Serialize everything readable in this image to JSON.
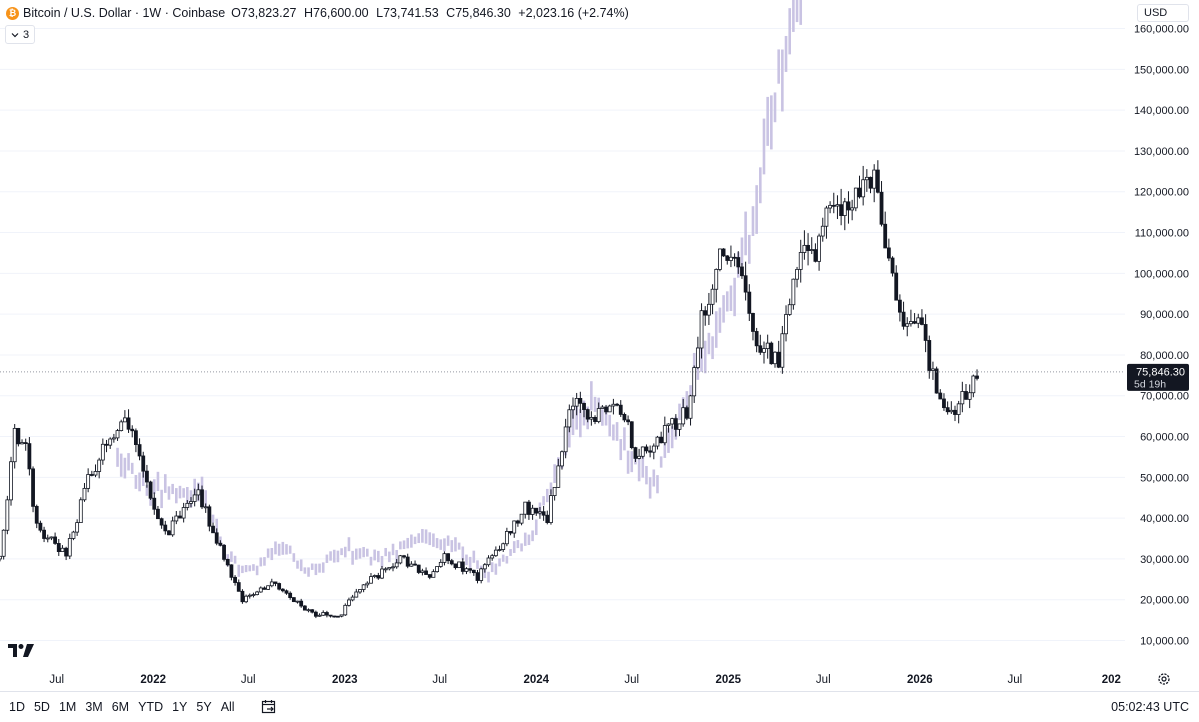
{
  "legend": {
    "coin_glyph": "₿",
    "title": "Bitcoin / U.S. Dollar · 1W · Coinbase",
    "open_label": "O",
    "open": "73,823.27",
    "high_label": "H",
    "high": "76,600.00",
    "low_label": "L",
    "low": "73,741.53",
    "close_label": "C",
    "close": "75,846.30",
    "change": "+2,023.16 (+2.74%)"
  },
  "collapse": {
    "icon": "chevron-down-icon",
    "count": "3"
  },
  "currency": "USD",
  "price_tag": {
    "price": "75,846.30",
    "countdown": "5d 19h"
  },
  "bottom_bar": {
    "ranges": [
      "1D",
      "5D",
      "1M",
      "3M",
      "6M",
      "YTD",
      "1Y",
      "5Y",
      "All"
    ],
    "clock": "05:02:43 UTC"
  },
  "colors": {
    "candle": "#131722",
    "ghost": "#c9c3e3",
    "grid": "#f0f3fa",
    "price_line": "#9598a1",
    "tag": "#131722"
  },
  "chart_data": {
    "type": "candlestick",
    "title": "Bitcoin / U.S. Dollar · 1W · Coinbase",
    "y_ticks": [
      10000,
      20000,
      30000,
      40000,
      50000,
      60000,
      70000,
      80000,
      90000,
      100000,
      110000,
      120000,
      130000,
      140000,
      150000,
      160000
    ],
    "y_tick_labels": [
      "10,000.00",
      "20,000.00",
      "30,000.00",
      "40,000.00",
      "50,000.00",
      "60,000.00",
      "70,000.00",
      "80,000.00",
      "90,000.00",
      "100,000.00",
      "110,000.00",
      "120,000.00",
      "130,000.00",
      "140,000.00",
      "150,000.00",
      "160,000.00"
    ],
    "ylim": [
      4000,
      167000
    ],
    "x_ticks": [
      "2021-07",
      "2022-01",
      "2022-07",
      "2023-01",
      "2023-07",
      "2024-01",
      "2024-07",
      "2025-01",
      "2025-07",
      "2026-01",
      "2026-07",
      "2027-01"
    ],
    "x_tick_labels": [
      "Jul",
      "2022",
      "Jul",
      "2023",
      "Jul",
      "2024",
      "Jul",
      "2025",
      "Jul",
      "2026",
      "Jul",
      "202"
    ],
    "x_range": [
      "2021-03-15",
      "2027-01-27"
    ],
    "last_price": 75846.3,
    "main_series_anchors": [
      [
        "2021-03-15",
        30000
      ],
      [
        "2021-04-12",
        60000
      ],
      [
        "2021-05-01",
        59000
      ],
      [
        "2021-05-24",
        38000
      ],
      [
        "2021-07-19",
        31000
      ],
      [
        "2021-08-30",
        49000
      ],
      [
        "2021-10-11",
        60000
      ],
      [
        "2021-11-08",
        66000
      ],
      [
        "2021-12-20",
        48000
      ],
      [
        "2022-01-24",
        36000
      ],
      [
        "2022-03-28",
        46000
      ],
      [
        "2022-05-16",
        30000
      ],
      [
        "2022-06-20",
        20000
      ],
      [
        "2022-08-15",
        24000
      ],
      [
        "2022-09-26",
        19500
      ],
      [
        "2022-11-07",
        16500
      ],
      [
        "2022-12-26",
        16500
      ],
      [
        "2023-01-23",
        22500
      ],
      [
        "2023-03-27",
        28000
      ],
      [
        "2023-04-17",
        30000
      ],
      [
        "2023-06-12",
        26000
      ],
      [
        "2023-07-10",
        30500
      ],
      [
        "2023-09-11",
        25500
      ],
      [
        "2023-10-30",
        34500
      ],
      [
        "2023-12-11",
        42500
      ],
      [
        "2024-01-22",
        40000
      ],
      [
        "2024-03-11",
        69000
      ],
      [
        "2024-04-15",
        63000
      ],
      [
        "2024-06-03",
        70000
      ],
      [
        "2024-07-08",
        56000
      ],
      [
        "2024-08-05",
        58000
      ],
      [
        "2024-10-14",
        66000
      ],
      [
        "2024-11-11",
        88000
      ],
      [
        "2024-12-16",
        104000
      ],
      [
        "2025-01-20",
        103000
      ],
      [
        "2025-02-24",
        84000
      ],
      [
        "2025-04-07",
        79000
      ],
      [
        "2025-05-19",
        108000
      ],
      [
        "2025-06-16",
        104000
      ],
      [
        "2025-07-14",
        117000
      ],
      [
        "2025-08-11",
        118000
      ],
      [
        "2025-10-06",
        122000
      ],
      [
        "2025-11-03",
        104000
      ],
      [
        "2025-11-24",
        88000
      ],
      [
        "2025-12-29",
        90000
      ],
      [
        "2026-02-02",
        70000
      ],
      [
        "2026-03-09",
        67000
      ],
      [
        "2026-04-06",
        72000
      ],
      [
        "2026-04-20",
        75846.3
      ]
    ],
    "ghost_series_anchors": [
      [
        "2021-10-25",
        55000
      ],
      [
        "2021-12-27",
        47000
      ],
      [
        "2022-04-04",
        46000
      ],
      [
        "2022-05-23",
        30000
      ],
      [
        "2022-07-04",
        27000
      ],
      [
        "2022-09-05",
        33000
      ],
      [
        "2022-10-24",
        27000
      ],
      [
        "2023-01-09",
        32000
      ],
      [
        "2023-03-06",
        30000
      ],
      [
        "2023-05-15",
        34000
      ],
      [
        "2023-07-24",
        34000
      ],
      [
        "2023-10-02",
        26000
      ],
      [
        "2023-12-25",
        36000
      ],
      [
        "2024-03-04",
        60000
      ],
      [
        "2024-04-22",
        68000
      ],
      [
        "2024-06-10",
        58000
      ],
      [
        "2024-08-12",
        48000
      ],
      [
        "2024-10-21",
        72000
      ],
      [
        "2024-12-02",
        82000
      ],
      [
        "2025-01-13",
        98000
      ],
      [
        "2025-02-17",
        112000
      ],
      [
        "2025-03-24",
        138000
      ],
      [
        "2025-04-21",
        158000
      ],
      [
        "2025-05-19",
        170000
      ]
    ]
  }
}
